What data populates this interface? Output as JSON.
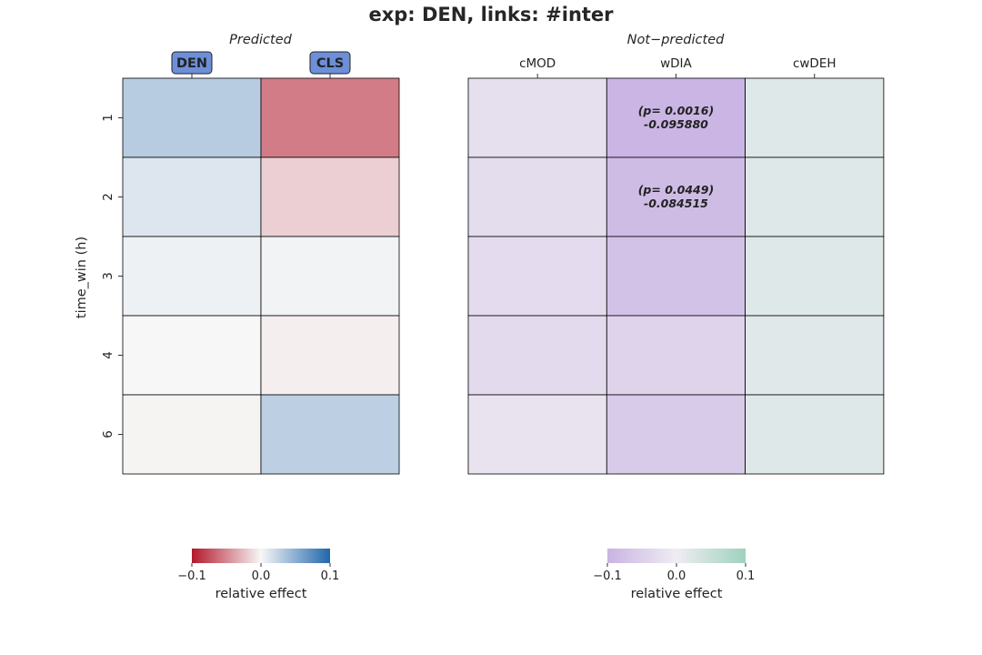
{
  "title": "exp: DEN, links: #inter",
  "y_axis_label": "time_win (h)",
  "chart_data": [
    {
      "type": "heatmap",
      "subtitle": "Predicted",
      "columns": [
        "DEN",
        "CLS"
      ],
      "highlighted_columns": [
        "DEN",
        "CLS"
      ],
      "rows": [
        "1",
        "2",
        "3",
        "4",
        "6"
      ],
      "values": [
        [
          0.03,
          -0.055
        ],
        [
          0.012,
          -0.018
        ],
        [
          0.004,
          0.003
        ],
        [
          0.0,
          -0.004
        ],
        [
          -0.002,
          0.027
        ]
      ],
      "colormap": {
        "low": "#b2182b",
        "mid": "#f7f7f7",
        "high": "#2166ac"
      },
      "annotations": [],
      "colorbar": {
        "label": "relative effect",
        "ticks": [
          "−0.1",
          "0.0",
          "0.1"
        ],
        "range": [
          -0.1,
          0.1
        ]
      }
    },
    {
      "type": "heatmap",
      "subtitle": "Not−predicted",
      "columns": [
        "cMOD",
        "wDIA",
        "cwDEH"
      ],
      "rows": [
        "1",
        "2",
        "3",
        "4",
        "6"
      ],
      "values": [
        [
          -0.025,
          -0.09588,
          0.02
        ],
        [
          -0.028,
          -0.084515,
          0.02
        ],
        [
          -0.03,
          -0.075,
          0.02
        ],
        [
          -0.032,
          -0.045,
          0.018
        ],
        [
          -0.018,
          -0.06,
          0.02
        ]
      ],
      "colormap": {
        "low": "#c9b3e3",
        "mid": "#efedf2",
        "high": "#9fd2be"
      },
      "annotations": [
        {
          "row": "1",
          "column": "wDIA",
          "p": "(p= 0.0016)",
          "value": "-0.095880"
        },
        {
          "row": "2",
          "column": "wDIA",
          "p": "(p= 0.0449)",
          "value": "-0.084515"
        }
      ],
      "colorbar": {
        "label": "relative effect",
        "ticks": [
          "−0.1",
          "0.0",
          "0.1"
        ],
        "range": [
          -0.1,
          0.1
        ]
      }
    }
  ]
}
